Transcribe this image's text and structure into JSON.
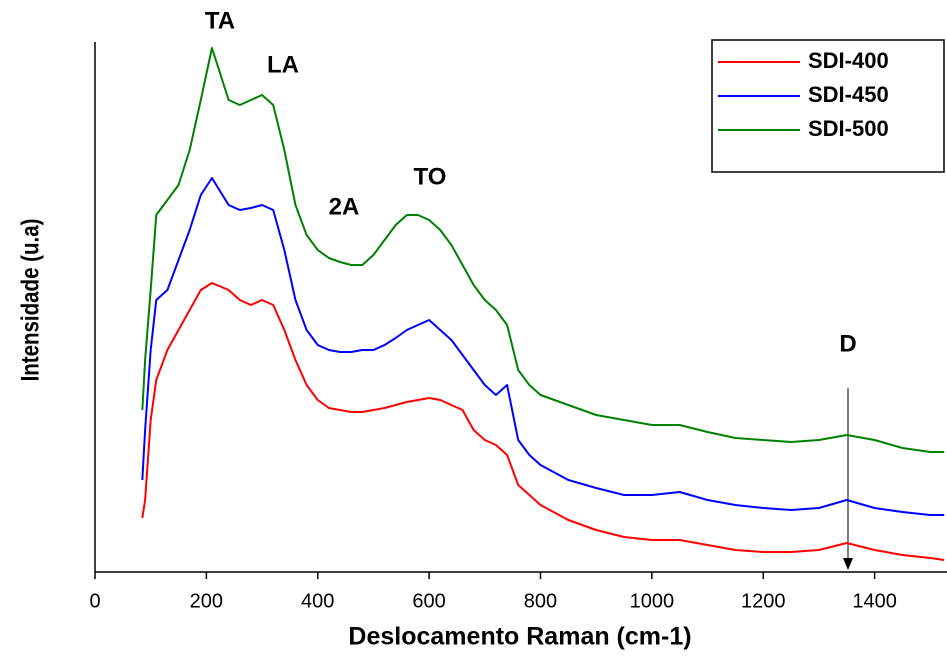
{
  "chart_data": {
    "type": "line",
    "x_label": "Deslocamento Raman (cm-1)",
    "y_label": "Intensidade (u.a)",
    "x": [
      85,
      90,
      100,
      110,
      130,
      150,
      170,
      190,
      210,
      240,
      260,
      280,
      300,
      320,
      340,
      360,
      380,
      400,
      420,
      440,
      460,
      480,
      500,
      520,
      540,
      560,
      580,
      600,
      620,
      640,
      660,
      680,
      700,
      720,
      740,
      760,
      780,
      800,
      850,
      900,
      950,
      1000,
      1050,
      1100,
      1150,
      1200,
      1250,
      1300,
      1350,
      1400,
      1450,
      1500,
      1525
    ],
    "series": [
      {
        "name": "SDI-400",
        "color": "#ff0000",
        "values": [
          54,
          72,
          152,
          192,
          222,
          242,
          262,
          282,
          289,
          282,
          272,
          267,
          272,
          267,
          242,
          212,
          187,
          172,
          164,
          162,
          160,
          160,
          162,
          164,
          167,
          170,
          172,
          174,
          172,
          167,
          162,
          142,
          132,
          127,
          117,
          87,
          77,
          67,
          52,
          42,
          35,
          32,
          32,
          27,
          22,
          20,
          20,
          22,
          29,
          22,
          17,
          14,
          12
        ]
      },
      {
        "name": "SDI-450",
        "color": "#0000ff",
        "values": [
          92,
          142,
          222,
          272,
          282,
          312,
          342,
          377,
          394,
          367,
          362,
          364,
          367,
          362,
          322,
          272,
          242,
          227,
          222,
          220,
          220,
          222,
          222,
          227,
          234,
          242,
          247,
          252,
          242,
          232,
          217,
          202,
          187,
          177,
          187,
          132,
          117,
          107,
          92,
          84,
          77,
          77,
          80,
          72,
          67,
          64,
          62,
          64,
          72,
          64,
          60,
          57,
          57
        ]
      },
      {
        "name": "SDI-500",
        "color": "#008000",
        "values": [
          162,
          212,
          282,
          357,
          372,
          387,
          422,
          472,
          524,
          472,
          467,
          472,
          477,
          467,
          422,
          367,
          337,
          322,
          314,
          310,
          307,
          307,
          317,
          332,
          347,
          357,
          357,
          352,
          342,
          327,
          307,
          287,
          272,
          262,
          247,
          202,
          187,
          177,
          167,
          157,
          152,
          147,
          147,
          140,
          134,
          132,
          130,
          132,
          137,
          132,
          124,
          120,
          120
        ]
      }
    ],
    "xlim": [
      0,
      1530
    ],
    "xticks": [
      0,
      200,
      400,
      600,
      800,
      1000,
      1200,
      1400
    ],
    "ylim": [
      0,
      530
    ],
    "annotations": [
      "TA",
      "LA",
      "2A",
      "TO",
      "D"
    ],
    "legend": "upper right"
  }
}
